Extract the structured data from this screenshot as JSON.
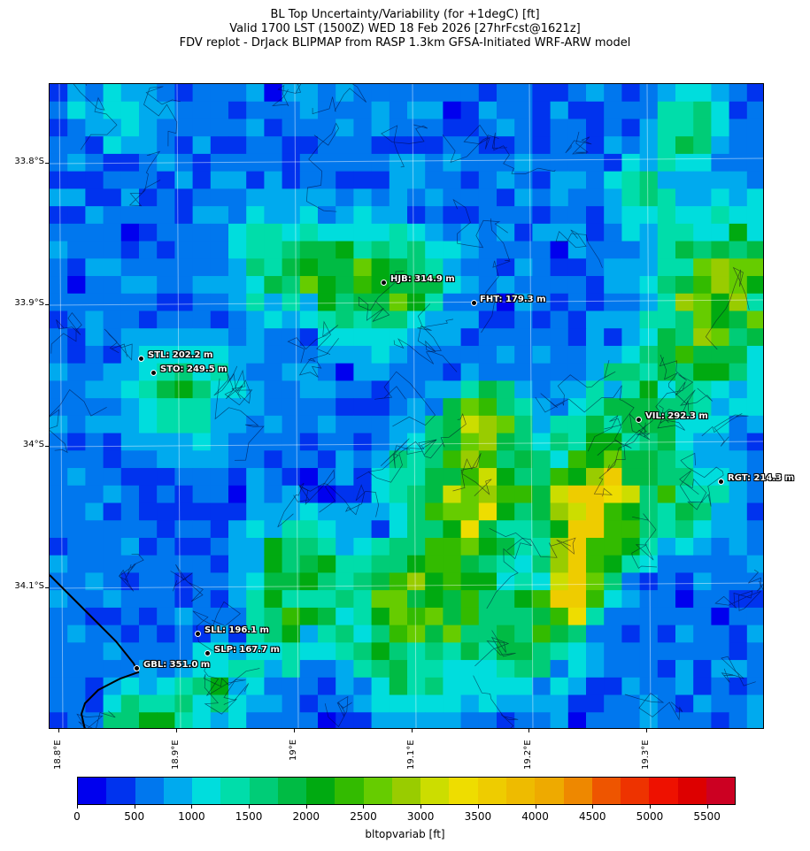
{
  "title": {
    "line1": "BL Top Uncertainty/Variability (for +1degC) [ft]",
    "line2": "Valid 1700 LST (1500Z) WED 18 Feb 2026 [27hrFcst@1621z]",
    "line3": "FDV replot - DrJack BLIPMAP from RASP 1.3km GFSA-Initiated WRF-ARW model"
  },
  "lat_labels": [
    "33.8°S",
    "33.9°S",
    "34°S",
    "34.1°S"
  ],
  "lon_labels": [
    "18.8°E",
    "18.9°E",
    "19°E",
    "19.1°E",
    "19.2°E",
    "19.3°E"
  ],
  "stations": [
    {
      "id": "HJB",
      "label": "HJB: 314.9 m"
    },
    {
      "id": "FHT",
      "label": "FHT: 179.3 m"
    },
    {
      "id": "STL",
      "label": "STL: 202.2 m"
    },
    {
      "id": "STO",
      "label": "STO: 249.5 m"
    },
    {
      "id": "VIL",
      "label": "VIL: 292.3 m"
    },
    {
      "id": "RGT",
      "label": "RGT: 214.3 m"
    },
    {
      "id": "SLL",
      "label": "SLL: 196.1 m"
    },
    {
      "id": "SLP",
      "label": "SLP: 167.7 m"
    },
    {
      "id": "GBL",
      "label": "GBL: 351.0 m"
    }
  ],
  "colorbar": {
    "title": "bltopvariab [ft]",
    "tick_labels": [
      "0",
      "500",
      "1000",
      "1500",
      "2000",
      "2500",
      "3000",
      "3500",
      "4000",
      "4500",
      "5000",
      "5500"
    ],
    "colors": [
      "#0000ee",
      "#0033ee",
      "#0077ee",
      "#00aaee",
      "#00dddd",
      "#00ddaa",
      "#00cc77",
      "#00bb44",
      "#00aa11",
      "#33bb00",
      "#66cc00",
      "#99cc00",
      "#ccdd00",
      "#eedd00",
      "#eecc00",
      "#eebb00",
      "#eeaa00",
      "#ee8800",
      "#ee5500",
      "#ee3300",
      "#ee1100",
      "#dd0000",
      "#cc0022"
    ]
  }
}
